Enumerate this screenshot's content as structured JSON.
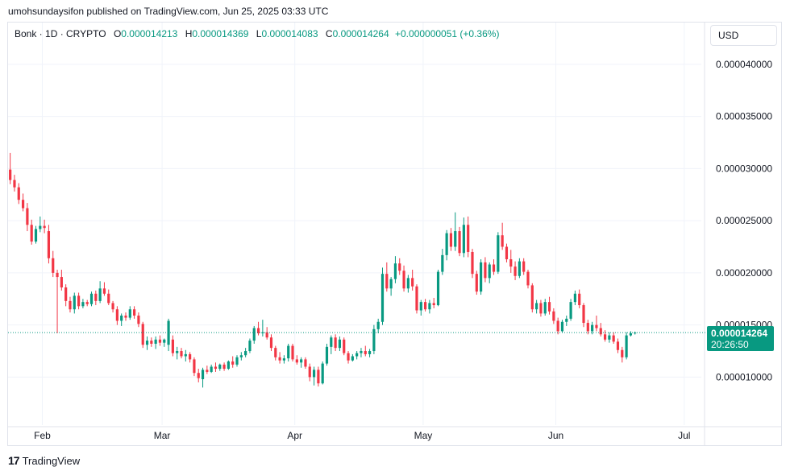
{
  "header": {
    "publisher_text": "umohsundaysifon published on TradingView.com, Jun 25, 2025 03:33 UTC"
  },
  "legend": {
    "symbol": "Bonk · 1D · CRYPTO",
    "o_label": "O",
    "o_value": "0.000014213",
    "h_label": "H",
    "h_value": "0.000014369",
    "l_label": "L",
    "l_value": "0.000014083",
    "c_label": "C",
    "c_value": "0.000014264",
    "change": "+0.000000051 (+0.36%)"
  },
  "currency_button": "USD",
  "price_tag": {
    "price": "0.000014264",
    "countdown": "20:26:50"
  },
  "footer": {
    "logo_text": "TradingView"
  },
  "colors": {
    "up": "#089981",
    "down": "#f23645",
    "grid": "#f0f3fa",
    "text": "#131722"
  },
  "chart_data": {
    "type": "candlestick",
    "symbol": "Bonk",
    "interval": "1D",
    "currency": "USD",
    "y_ticks": [
      "0.000040000",
      "0.000035000",
      "0.000030000",
      "0.000025000",
      "0.000020000",
      "0.000015000",
      "0.000010000"
    ],
    "x_ticks": [
      "Feb",
      "Mar",
      "Apr",
      "May",
      "Jun",
      "Jul"
    ],
    "ylim": [
      5.4e-06,
      4.4e-05
    ],
    "xlim": [
      "2025-01-24",
      "2025-07-05"
    ],
    "last_price": 1.4264e-05,
    "candles_ohlc_1e6": [
      [
        29.9,
        31.5,
        28.5,
        28.9
      ],
      [
        28.9,
        29.4,
        27.8,
        28.2
      ],
      [
        28.2,
        28.6,
        26.6,
        27.0
      ],
      [
        27.0,
        27.6,
        25.9,
        26.2
      ],
      [
        26.2,
        26.7,
        24.0,
        24.6
      ],
      [
        24.6,
        25.1,
        22.7,
        23.0
      ],
      [
        23.0,
        24.5,
        22.8,
        24.2
      ],
      [
        24.2,
        25.4,
        23.9,
        24.5
      ],
      [
        24.5,
        25.1,
        23.8,
        24.3
      ],
      [
        24.0,
        24.6,
        20.9,
        21.4
      ],
      [
        21.4,
        22.1,
        19.6,
        20.0
      ],
      [
        20.0,
        20.3,
        14.2,
        19.6
      ],
      [
        19.6,
        20.3,
        18.3,
        18.6
      ],
      [
        18.6,
        18.9,
        16.8,
        17.3
      ],
      [
        17.3,
        17.7,
        16.2,
        16.5
      ],
      [
        16.5,
        18.1,
        16.1,
        17.8
      ],
      [
        17.8,
        18.1,
        16.5,
        16.8
      ],
      [
        16.8,
        17.5,
        16.6,
        17.2
      ],
      [
        17.2,
        17.4,
        16.8,
        17.0
      ],
      [
        17.0,
        18.2,
        16.8,
        18.0
      ],
      [
        18.0,
        18.3,
        16.9,
        17.3
      ],
      [
        17.3,
        19.2,
        17.1,
        18.5
      ],
      [
        18.5,
        19.1,
        17.8,
        18.0
      ],
      [
        18.0,
        18.4,
        16.9,
        17.1
      ],
      [
        17.1,
        17.3,
        16.2,
        16.5
      ],
      [
        16.5,
        16.8,
        15.0,
        15.4
      ],
      [
        15.4,
        16.1,
        14.9,
        15.9
      ],
      [
        15.9,
        16.2,
        15.4,
        15.7
      ],
      [
        15.7,
        16.8,
        15.5,
        16.5
      ],
      [
        16.5,
        16.8,
        15.6,
        15.9
      ],
      [
        15.9,
        16.2,
        14.8,
        15.1
      ],
      [
        15.1,
        15.3,
        12.8,
        13.1
      ],
      [
        13.1,
        13.9,
        12.6,
        13.5
      ],
      [
        13.5,
        13.8,
        12.9,
        13.2
      ],
      [
        13.2,
        13.9,
        12.7,
        13.6
      ],
      [
        13.6,
        14.0,
        13.0,
        13.3
      ],
      [
        13.3,
        13.7,
        12.9,
        13.6
      ],
      [
        13.1,
        15.6,
        12.5,
        15.4
      ],
      [
        13.6,
        14.0,
        12.0,
        12.3
      ],
      [
        12.3,
        12.9,
        11.7,
        12.5
      ],
      [
        12.5,
        12.8,
        11.8,
        12.0
      ],
      [
        12.0,
        12.6,
        11.5,
        12.2
      ],
      [
        12.2,
        12.4,
        11.4,
        11.7
      ],
      [
        11.7,
        11.9,
        10.1,
        10.4
      ],
      [
        10.4,
        10.8,
        9.5,
        9.9
      ],
      [
        9.8,
        10.9,
        9.0,
        10.7
      ],
      [
        10.7,
        11.1,
        10.3,
        10.5
      ],
      [
        10.5,
        11.2,
        10.4,
        11.0
      ],
      [
        11.0,
        11.4,
        10.5,
        10.8
      ],
      [
        10.8,
        11.3,
        10.6,
        11.2
      ],
      [
        11.2,
        11.4,
        10.6,
        10.8
      ],
      [
        10.8,
        11.6,
        10.7,
        11.5
      ],
      [
        11.5,
        12.0,
        10.9,
        11.2
      ],
      [
        11.2,
        12.1,
        11.0,
        11.9
      ],
      [
        11.9,
        12.4,
        11.6,
        12.1
      ],
      [
        12.1,
        12.8,
        11.9,
        12.5
      ],
      [
        12.5,
        13.7,
        12.3,
        13.5
      ],
      [
        13.5,
        14.9,
        13.2,
        14.7
      ],
      [
        14.7,
        15.3,
        14.0,
        14.2
      ],
      [
        14.2,
        15.5,
        13.9,
        14.3
      ],
      [
        14.3,
        14.8,
        13.6,
        13.8
      ],
      [
        13.8,
        14.1,
        12.5,
        12.8
      ],
      [
        12.8,
        13.0,
        11.6,
        11.9
      ],
      [
        11.9,
        12.4,
        11.3,
        11.6
      ],
      [
        11.6,
        12.1,
        11.3,
        11.8
      ],
      [
        11.8,
        13.2,
        11.5,
        13.0
      ],
      [
        13.0,
        13.2,
        11.5,
        11.7
      ],
      [
        11.7,
        12.1,
        11.2,
        11.4
      ],
      [
        11.4,
        11.9,
        10.9,
        11.7
      ],
      [
        11.7,
        11.9,
        10.8,
        11.0
      ],
      [
        11.0,
        11.3,
        9.6,
        10.0
      ],
      [
        10.0,
        11.0,
        9.2,
        10.7
      ],
      [
        10.7,
        11.0,
        9.1,
        9.4
      ],
      [
        9.4,
        11.5,
        9.3,
        11.3
      ],
      [
        11.3,
        13.2,
        11.1,
        12.9
      ],
      [
        12.9,
        14.0,
        12.2,
        13.8
      ],
      [
        13.8,
        14.1,
        12.5,
        12.8
      ],
      [
        12.8,
        13.9,
        12.5,
        13.6
      ],
      [
        13.6,
        13.8,
        12.1,
        12.3
      ],
      [
        12.3,
        12.5,
        11.3,
        11.6
      ],
      [
        11.6,
        12.2,
        11.5,
        12.0
      ],
      [
        12.0,
        12.5,
        11.7,
        12.3
      ],
      [
        12.3,
        12.8,
        11.9,
        12.5
      ],
      [
        12.5,
        13.0,
        12.0,
        12.2
      ],
      [
        12.2,
        12.7,
        11.9,
        12.5
      ],
      [
        12.5,
        15.0,
        12.2,
        14.6
      ],
      [
        14.6,
        15.6,
        14.2,
        15.3
      ],
      [
        15.3,
        20.5,
        15.0,
        19.9
      ],
      [
        19.9,
        21.0,
        18.2,
        18.5
      ],
      [
        18.5,
        19.6,
        17.8,
        19.4
      ],
      [
        19.4,
        21.6,
        19.0,
        20.9
      ],
      [
        20.9,
        21.4,
        19.8,
        20.2
      ],
      [
        20.2,
        20.7,
        18.2,
        18.5
      ],
      [
        18.5,
        19.8,
        18.1,
        19.5
      ],
      [
        19.5,
        20.3,
        18.3,
        18.7
      ],
      [
        18.7,
        18.9,
        16.1,
        16.4
      ],
      [
        16.4,
        17.4,
        15.9,
        17.2
      ],
      [
        17.2,
        17.5,
        16.3,
        16.5
      ],
      [
        16.5,
        17.4,
        16.1,
        17.1
      ],
      [
        17.1,
        17.6,
        16.6,
        16.9
      ],
      [
        16.9,
        20.3,
        16.8,
        20.1
      ],
      [
        20.1,
        22.3,
        19.8,
        21.7
      ],
      [
        21.7,
        24.1,
        21.2,
        23.8
      ],
      [
        23.8,
        24.3,
        22.1,
        22.5
      ],
      [
        22.5,
        25.8,
        22.1,
        24.0
      ],
      [
        24.0,
        24.4,
        21.6,
        21.9
      ],
      [
        21.9,
        25.3,
        21.5,
        24.6
      ],
      [
        24.6,
        25.4,
        21.5,
        22.0
      ],
      [
        22.0,
        22.3,
        19.5,
        19.9
      ],
      [
        19.9,
        20.2,
        17.9,
        18.2
      ],
      [
        18.2,
        21.3,
        17.9,
        21.0
      ],
      [
        21.0,
        21.5,
        19.1,
        19.5
      ],
      [
        19.5,
        21.0,
        19.0,
        20.8
      ],
      [
        20.8,
        21.3,
        19.8,
        20.1
      ],
      [
        20.1,
        23.9,
        19.9,
        23.6
      ],
      [
        23.6,
        24.8,
        22.2,
        22.5
      ],
      [
        22.5,
        22.8,
        21.0,
        21.3
      ],
      [
        21.3,
        22.2,
        20.0,
        20.6
      ],
      [
        20.6,
        21.1,
        19.3,
        19.7
      ],
      [
        19.7,
        21.4,
        19.5,
        21.1
      ],
      [
        21.1,
        21.4,
        19.8,
        20.1
      ],
      [
        20.1,
        20.3,
        18.5,
        18.8
      ],
      [
        18.8,
        19.0,
        16.2,
        16.5
      ],
      [
        16.5,
        17.4,
        16.1,
        17.1
      ],
      [
        17.1,
        17.4,
        15.8,
        16.1
      ],
      [
        16.1,
        17.5,
        15.9,
        17.2
      ],
      [
        17.2,
        17.7,
        16.0,
        16.3
      ],
      [
        16.3,
        16.6,
        15.1,
        15.4
      ],
      [
        15.4,
        15.7,
        14.1,
        14.4
      ],
      [
        14.4,
        15.5,
        14.3,
        15.3
      ],
      [
        15.3,
        15.9,
        14.9,
        15.6
      ],
      [
        15.6,
        17.5,
        15.4,
        17.2
      ],
      [
        17.2,
        18.3,
        16.9,
        18.0
      ],
      [
        18.0,
        18.4,
        16.6,
        16.9
      ],
      [
        16.9,
        17.1,
        14.8,
        15.2
      ],
      [
        15.2,
        15.5,
        14.1,
        14.4
      ],
      [
        14.4,
        15.3,
        14.1,
        15.0
      ],
      [
        15.0,
        15.9,
        14.4,
        14.7
      ],
      [
        14.7,
        15.2,
        13.9,
        14.1
      ],
      [
        14.1,
        14.5,
        13.4,
        13.6
      ],
      [
        13.6,
        14.3,
        13.3,
        14.0
      ],
      [
        14.0,
        14.3,
        13.2,
        13.4
      ],
      [
        13.4,
        13.7,
        12.3,
        12.6
      ],
      [
        12.6,
        12.9,
        11.4,
        11.9
      ],
      [
        11.9,
        14.3,
        11.7,
        14.0
      ],
      [
        14.0,
        14.4,
        13.9,
        14.2
      ],
      [
        14.213,
        14.369,
        14.083,
        14.264
      ]
    ]
  }
}
